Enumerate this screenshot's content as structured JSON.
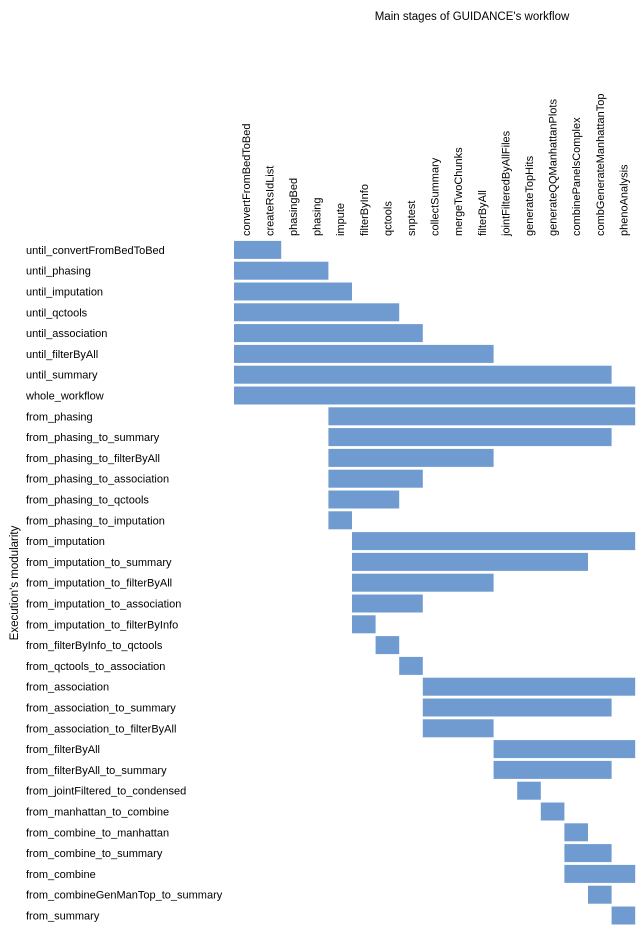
{
  "chart_data": {
    "type": "bar",
    "orientation": "horizontal-gantt",
    "title": "Main stages of GUIDANCE's workflow",
    "ylabel": "Execution's modularity",
    "stages": [
      "convertFromBedToBed",
      "createRsIdList",
      "phasingBed",
      "phasing",
      "impute",
      "filterByInfo",
      "qctools",
      "snptest",
      "collectSummary",
      "mergeTwoChunks",
      "filterByAll",
      "jointFilteredByAllFiles",
      "generateTopHits",
      "generateQQManhattanPlots",
      "combinePanelsComplex",
      "combGenerateManhattanTop",
      "phenoAnalysis"
    ],
    "bar_color": "#6f9bd1",
    "grid": false,
    "legend": "none",
    "rows": [
      {
        "name": "until_convertFromBedToBed",
        "start": 0,
        "end": 2
      },
      {
        "name": "until_phasing",
        "start": 0,
        "end": 4
      },
      {
        "name": "until_imputation",
        "start": 0,
        "end": 5
      },
      {
        "name": "until_qctools",
        "start": 0,
        "end": 7
      },
      {
        "name": "until_association",
        "start": 0,
        "end": 8
      },
      {
        "name": "until_filterByAll",
        "start": 0,
        "end": 11
      },
      {
        "name": "until_summary",
        "start": 0,
        "end": 16
      },
      {
        "name": "whole_workflow",
        "start": 0,
        "end": 17
      },
      {
        "name": "from_phasing",
        "start": 4,
        "end": 17
      },
      {
        "name": "from_phasing_to_summary",
        "start": 4,
        "end": 16
      },
      {
        "name": "from_phasing_to_filterByAll",
        "start": 4,
        "end": 11
      },
      {
        "name": "from_phasing_to_association",
        "start": 4,
        "end": 8
      },
      {
        "name": "from_phasing_to_qctools",
        "start": 4,
        "end": 7
      },
      {
        "name": "from_phasing_to_imputation",
        "start": 4,
        "end": 5
      },
      {
        "name": "from_imputation",
        "start": 5,
        "end": 17
      },
      {
        "name": "from_imputation_to_summary",
        "start": 5,
        "end": 15
      },
      {
        "name": "from_imputation_to_filterByAll",
        "start": 5,
        "end": 11
      },
      {
        "name": "from_imputation_to_association",
        "start": 5,
        "end": 8
      },
      {
        "name": "from_imputation_to_filterByInfo",
        "start": 5,
        "end": 6
      },
      {
        "name": "from_filterByInfo_to_qctools",
        "start": 6,
        "end": 7
      },
      {
        "name": "from_qctools_to_association",
        "start": 7,
        "end": 8
      },
      {
        "name": "from_association",
        "start": 8,
        "end": 17
      },
      {
        "name": "from_association_to_summary",
        "start": 8,
        "end": 16
      },
      {
        "name": "from_association_to_filterByAll",
        "start": 8,
        "end": 11
      },
      {
        "name": "from_filterByAll",
        "start": 11,
        "end": 17
      },
      {
        "name": "from_filterByAll_to_summary",
        "start": 11,
        "end": 16
      },
      {
        "name": "from_jointFiltered_to_condensed",
        "start": 12,
        "end": 13
      },
      {
        "name": "from_manhattan_to_combine",
        "start": 13,
        "end": 14
      },
      {
        "name": "from_combine_to_manhattan",
        "start": 14,
        "end": 15
      },
      {
        "name": "from_combine_to_summary",
        "start": 14,
        "end": 16
      },
      {
        "name": "from_combine",
        "start": 14,
        "end": 17
      },
      {
        "name": "from_combineGenManTop_to_summary",
        "start": 15,
        "end": 16
      },
      {
        "name": "from_summary",
        "start": 16,
        "end": 17
      }
    ]
  }
}
